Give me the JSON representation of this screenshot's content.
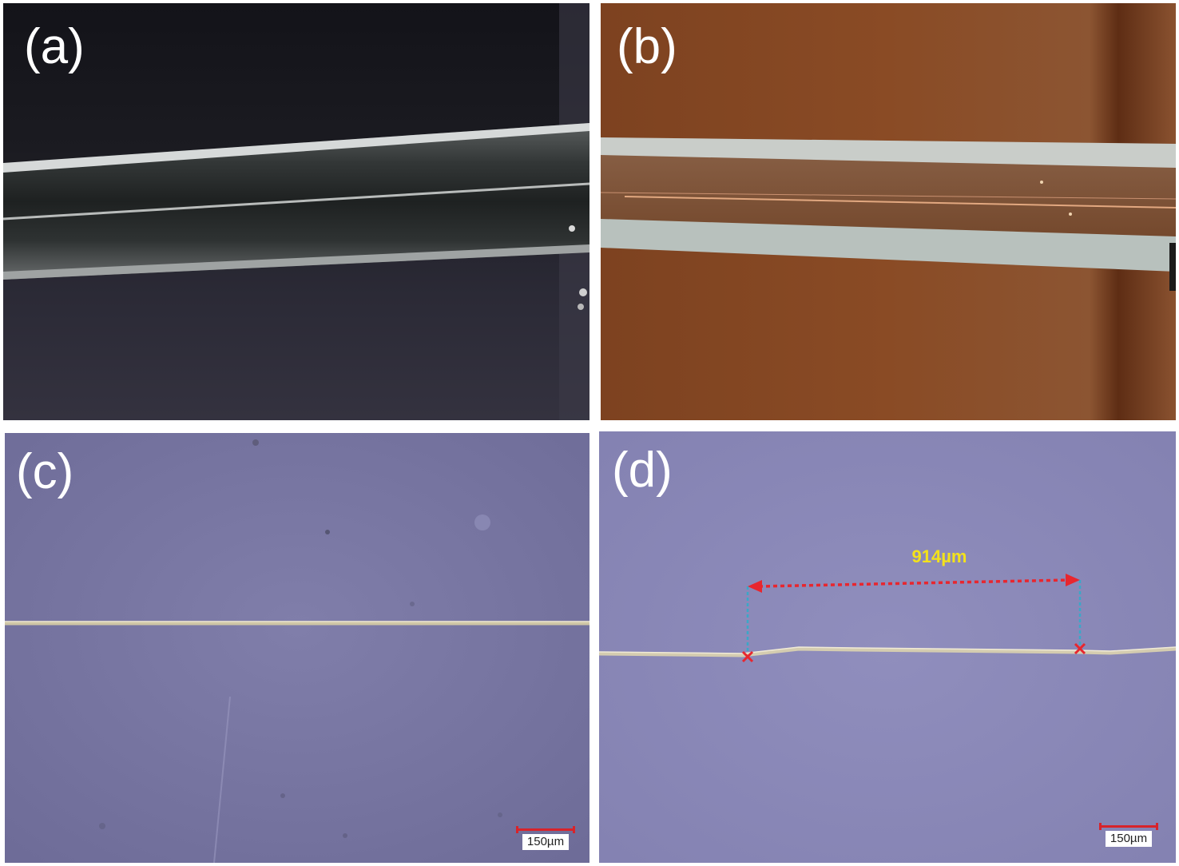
{
  "figure": {
    "panels": [
      {
        "label": "(a)"
      },
      {
        "label": "(b)"
      },
      {
        "label": "(c)",
        "scale_bar": "150µm"
      },
      {
        "label": "(d)",
        "scale_bar": "150µm",
        "measurement": "914µm"
      }
    ]
  },
  "colors": {
    "panel_a_background": "#24242e",
    "panel_b_background": "#8a4a24",
    "panel_c_background": "#7c7aa6",
    "panel_d_background": "#8a88b8",
    "measurement_arrow": "#e8262e",
    "measurement_guides": "#3aa8c8",
    "measurement_text": "#f3e21b",
    "scale_bar": "#d8232a"
  }
}
